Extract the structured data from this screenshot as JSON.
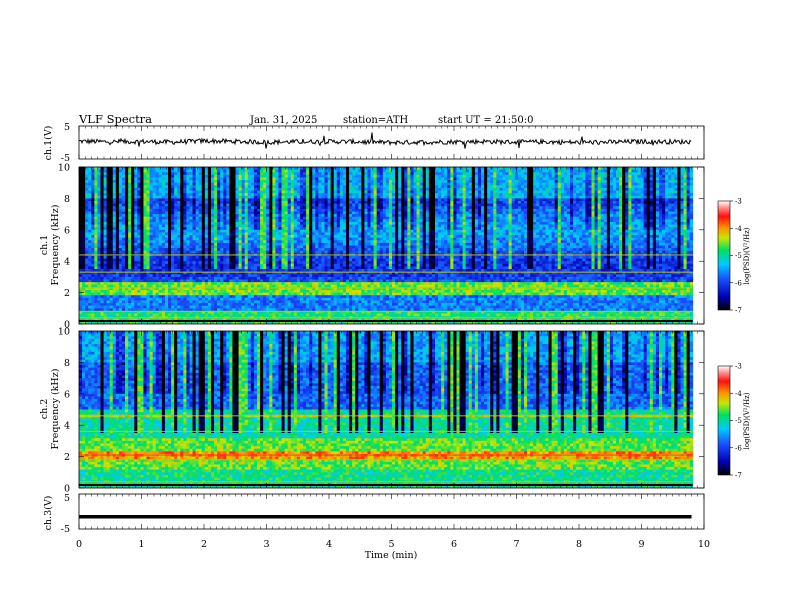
{
  "header": {
    "title": "VLF Spectra",
    "date": "Jan. 31, 2025",
    "station": "station=ATH",
    "start": "start UT = 21:50:0"
  },
  "chart_data": [
    {
      "type": "line",
      "panel": "ch1-waveform",
      "ylabel": "ch.1(V)",
      "ylim": [
        -5,
        5
      ],
      "yticks": [
        "5",
        "-5"
      ],
      "x": [
        0,
        0.5,
        1,
        1.5,
        2,
        2.5,
        3,
        3.5,
        4,
        4.5,
        5,
        5.5,
        6,
        6.5,
        7,
        7.5,
        8,
        8.5,
        9,
        9.5,
        9.8
      ],
      "values": [
        0.4,
        0.2,
        0.3,
        0.1,
        0.5,
        0.3,
        0.1,
        0.2,
        0.3,
        0.2,
        0.0,
        0.1,
        0.2,
        0.3,
        0.1,
        0.2,
        0.0,
        0.1,
        0.3,
        0.2,
        0.2
      ]
    },
    {
      "type": "heatmap",
      "panel": "ch1-spectrogram",
      "ylabel_top": "ch.1",
      "ylabel": "Frequency (kHz)",
      "ylim": [
        0,
        10
      ],
      "yticks": [
        "0",
        "2",
        "4",
        "6",
        "8",
        "10"
      ],
      "colorbar": {
        "label": "log(PSD)(V²/Hz)",
        "range": [
          -7,
          -3
        ],
        "ticks": [
          "-3",
          "-4",
          "-5",
          "-6",
          "-7"
        ]
      }
    },
    {
      "type": "heatmap",
      "panel": "ch2-spectrogram",
      "ylabel_top": "ch.2",
      "ylabel": "Frequency (kHz)",
      "ylim": [
        0,
        10
      ],
      "yticks": [
        "0",
        "2",
        "4",
        "6",
        "8",
        "10"
      ],
      "colorbar": {
        "label": "log(PSD)(V²/Hz)",
        "range": [
          -7,
          -3
        ],
        "ticks": [
          "-3",
          "-4",
          "-5",
          "-6",
          "-7"
        ]
      }
    },
    {
      "type": "line",
      "panel": "ch3-waveform",
      "ylabel": "ch.3(V)",
      "ylim": [
        -5,
        5
      ],
      "yticks": [
        "5",
        "-5"
      ],
      "x": [
        0,
        9.8
      ],
      "values": [
        -1.5,
        -1.5
      ]
    }
  ],
  "xaxis": {
    "label": "Time (min)",
    "range": [
      0,
      10
    ],
    "ticks": [
      "0",
      "1",
      "2",
      "3",
      "4",
      "5",
      "6",
      "7",
      "8",
      "9",
      "10"
    ]
  }
}
